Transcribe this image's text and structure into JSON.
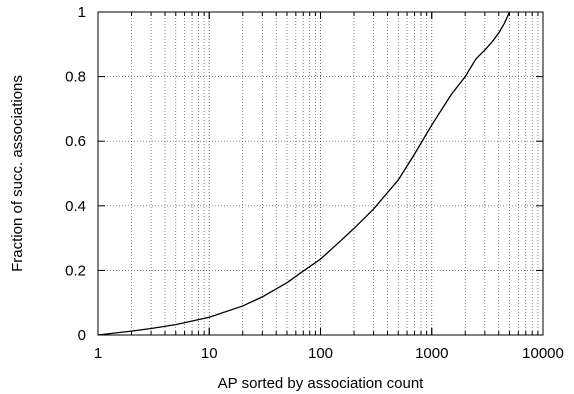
{
  "chart_data": {
    "type": "line",
    "title": "",
    "xlabel": "AP sorted by association count",
    "ylabel": "Fraction of succ. associations",
    "xscale": "log",
    "xlim": [
      1,
      10000
    ],
    "ylim": [
      0,
      1
    ],
    "grid": true,
    "grid_style": "dotted",
    "legend": "none",
    "line_color": "#000000",
    "xticks": [
      {
        "value": 1,
        "label": "1"
      },
      {
        "value": 10,
        "label": "10"
      },
      {
        "value": 100,
        "label": "100"
      },
      {
        "value": 1000,
        "label": "1000"
      },
      {
        "value": 10000,
        "label": "10000"
      }
    ],
    "yticks": [
      {
        "value": 0,
        "label": "0"
      },
      {
        "value": 0.2,
        "label": "0.2"
      },
      {
        "value": 0.4,
        "label": "0.4"
      },
      {
        "value": 0.6,
        "label": "0.6"
      },
      {
        "value": 0.8,
        "label": "0.8"
      },
      {
        "value": 1,
        "label": "1"
      }
    ],
    "series": [
      {
        "x": [
          1,
          2,
          3,
          5,
          10,
          20,
          30,
          50,
          70,
          100,
          150,
          200,
          300,
          500,
          700,
          1000,
          1500,
          2000,
          2500,
          3000,
          3500,
          4000,
          4500,
          5000
        ],
        "y": [
          0,
          0.012,
          0.02,
          0.032,
          0.055,
          0.09,
          0.118,
          0.162,
          0.198,
          0.235,
          0.29,
          0.33,
          0.39,
          0.48,
          0.56,
          0.65,
          0.745,
          0.8,
          0.855,
          0.882,
          0.908,
          0.935,
          0.965,
          1.0
        ]
      }
    ]
  }
}
